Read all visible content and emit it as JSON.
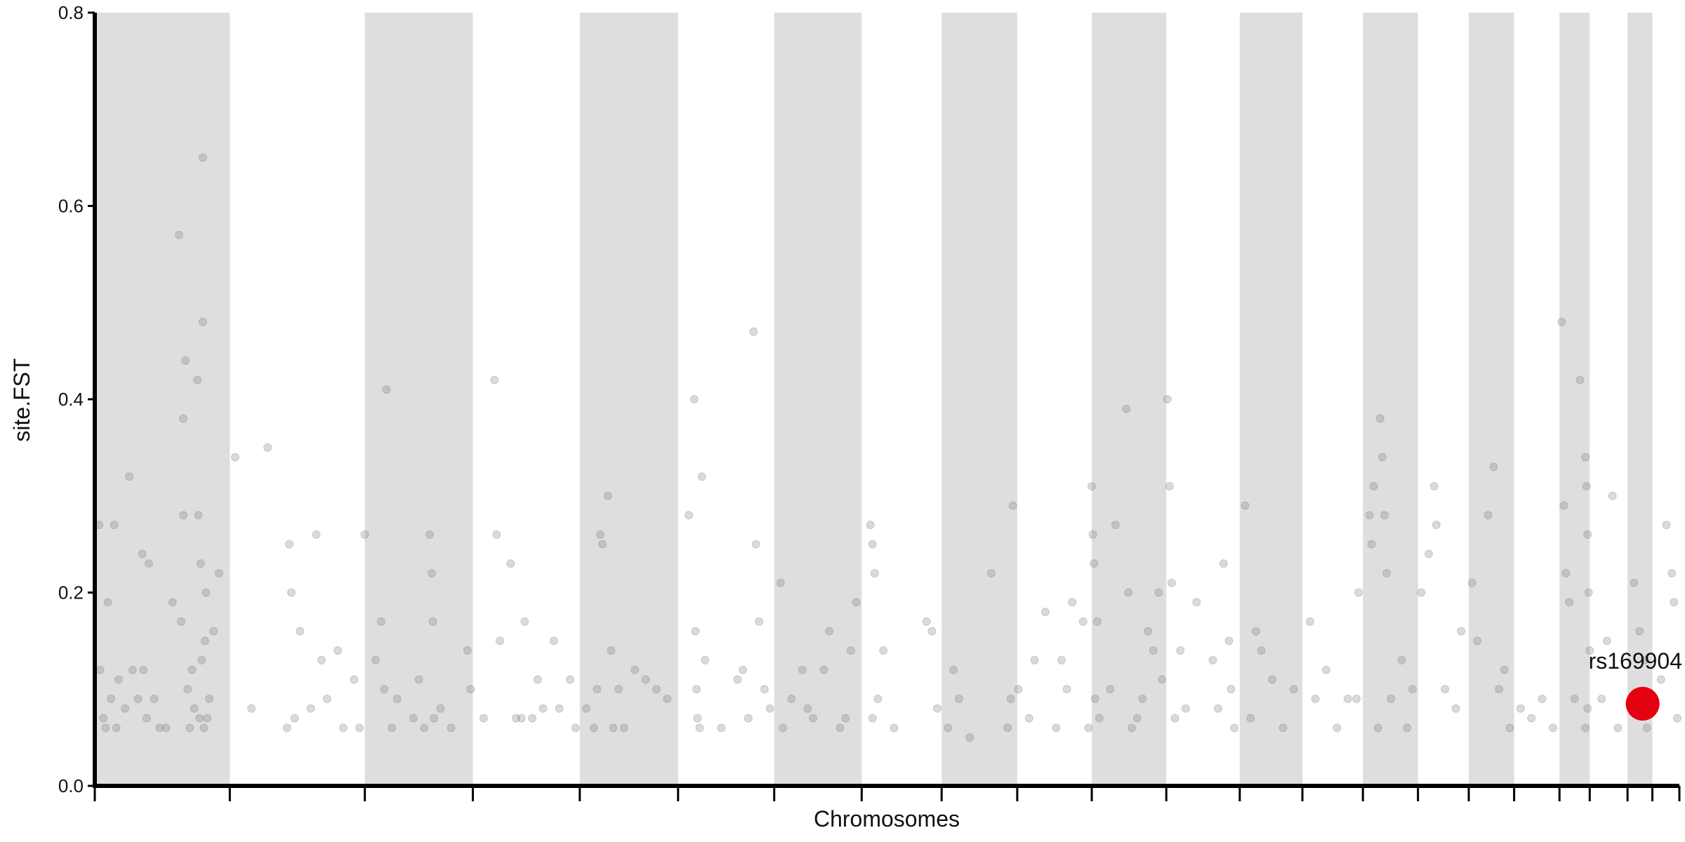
{
  "chart_data": {
    "type": "scatter",
    "xlabel": "Chromosomes",
    "ylabel": "site.FST",
    "xlim": [
      0,
      1467
    ],
    "xticks": [
      0,
      125,
      250,
      350,
      449,
      540,
      629,
      710,
      784,
      854,
      923,
      992,
      1060,
      1118,
      1174,
      1225,
      1272,
      1314,
      1356,
      1384,
      1419,
      1442,
      1467
    ],
    "ylim": [
      0,
      0.8
    ],
    "yticks": [
      {
        "value": 0,
        "label": "0.0"
      },
      0.2,
      0.4,
      0.6,
      0.8
    ],
    "alternating_bands": true,
    "band_color": "#dedede",
    "color": "#7a7a7a",
    "x": [
      4,
      5,
      8,
      12,
      15,
      18,
      22,
      28,
      32,
      35,
      40,
      44,
      48,
      50,
      55,
      60,
      66,
      72,
      78,
      80,
      82,
      82,
      84,
      86,
      88,
      95,
      96,
      98,
      100,
      100,
      102,
      104,
      106,
      110,
      115,
      90,
      92,
      103,
      99,
      101,
      97,
      45,
      20,
      10,
      130,
      160,
      145,
      180,
      182,
      185,
      190,
      205,
      210,
      215,
      225,
      230,
      240,
      245,
      178,
      200,
      250,
      260,
      265,
      270,
      275,
      280,
      295,
      300,
      310,
      312,
      313,
      314,
      320,
      330,
      345,
      348,
      305,
      268,
      360,
      370,
      372,
      375,
      385,
      390,
      398,
      410,
      415,
      425,
      430,
      440,
      445,
      395,
      405,
      455,
      465,
      468,
      470,
      475,
      478,
      480,
      485,
      490,
      520,
      530,
      462,
      500,
      510,
      550,
      555,
      556,
      557,
      558,
      560,
      562,
      565,
      580,
      600,
      610,
      612,
      615,
      620,
      595,
      605,
      625,
      635,
      637,
      645,
      655,
      665,
      675,
      680,
      690,
      700,
      705,
      695,
      660,
      718,
      720,
      722,
      725,
      730,
      740,
      770,
      775,
      780,
      720,
      790,
      795,
      800,
      810,
      830,
      848,
      850,
      845,
      855,
      865,
      870,
      880,
      890,
      900,
      905,
      915,
      920,
      895,
      923,
      924,
      925,
      926,
      928,
      930,
      940,
      945,
      955,
      957,
      965,
      970,
      975,
      980,
      985,
      988,
      960,
      993,
      995,
      997,
      1000,
      1005,
      1010,
      1020,
      1035,
      1045,
      1050,
      1052,
      1055,
      1040,
      1065,
      1070,
      1075,
      1080,
      1090,
      1100,
      1110,
      1125,
      1130,
      1140,
      1150,
      1160,
      1168,
      1170,
      1180,
      1182,
      1184,
      1190,
      1192,
      1194,
      1196,
      1200,
      1210,
      1215,
      1220,
      1188,
      1228,
      1235,
      1240,
      1242,
      1250,
      1260,
      1265,
      1275,
      1280,
      1290,
      1300,
      1305,
      1310,
      1295,
      1320,
      1330,
      1340,
      1350,
      1358,
      1360,
      1362,
      1365,
      1375,
      1380,
      1381,
      1382,
      1383,
      1384,
      1382,
      1380,
      1370,
      1405,
      1395,
      1410,
      1400,
      1425,
      1430,
      1435,
      1437,
      1428,
      1455,
      1460,
      1462,
      1465,
      1450
    ],
    "values": [
      0.27,
      0.12,
      0.07,
      0.19,
      0.09,
      0.27,
      0.11,
      0.08,
      0.32,
      0.12,
      0.09,
      0.24,
      0.07,
      0.23,
      0.09,
      0.06,
      0.06,
      0.19,
      0.57,
      0.17,
      0.28,
      0.38,
      0.44,
      0.1,
      0.06,
      0.42,
      0.28,
      0.23,
      0.65,
      0.48,
      0.15,
      0.07,
      0.09,
      0.16,
      0.22,
      0.12,
      0.08,
      0.2,
      0.13,
      0.06,
      0.07,
      0.12,
      0.06,
      0.06,
      0.34,
      0.35,
      0.08,
      0.25,
      0.2,
      0.07,
      0.16,
      0.26,
      0.13,
      0.09,
      0.14,
      0.06,
      0.11,
      0.06,
      0.06,
      0.08,
      0.26,
      0.13,
      0.17,
      0.41,
      0.06,
      0.09,
      0.07,
      0.11,
      0.26,
      0.22,
      0.17,
      0.07,
      0.08,
      0.06,
      0.14,
      0.1,
      0.06,
      0.1,
      0.07,
      0.42,
      0.26,
      0.15,
      0.23,
      0.07,
      0.17,
      0.11,
      0.08,
      0.15,
      0.08,
      0.11,
      0.06,
      0.07,
      0.07,
      0.08,
      0.1,
      0.26,
      0.25,
      0.3,
      0.14,
      0.06,
      0.1,
      0.06,
      0.1,
      0.09,
      0.06,
      0.12,
      0.11,
      0.28,
      0.4,
      0.16,
      0.1,
      0.07,
      0.06,
      0.32,
      0.13,
      0.06,
      0.12,
      0.47,
      0.25,
      0.17,
      0.1,
      0.11,
      0.07,
      0.08,
      0.21,
      0.06,
      0.09,
      0.12,
      0.07,
      0.12,
      0.16,
      0.06,
      0.14,
      0.19,
      0.07,
      0.08,
      0.27,
      0.25,
      0.22,
      0.09,
      0.14,
      0.06,
      0.17,
      0.16,
      0.08,
      0.07,
      0.06,
      0.12,
      0.09,
      0.05,
      0.22,
      0.09,
      0.29,
      0.06,
      0.1,
      0.07,
      0.13,
      0.18,
      0.06,
      0.1,
      0.19,
      0.17,
      0.06,
      0.13,
      0.31,
      0.26,
      0.23,
      0.09,
      0.17,
      0.07,
      0.1,
      0.27,
      0.39,
      0.2,
      0.07,
      0.09,
      0.16,
      0.14,
      0.2,
      0.11,
      0.06,
      0.4,
      0.31,
      0.21,
      0.07,
      0.14,
      0.08,
      0.19,
      0.13,
      0.23,
      0.15,
      0.1,
      0.06,
      0.08,
      0.29,
      0.07,
      0.16,
      0.14,
      0.11,
      0.06,
      0.1,
      0.17,
      0.09,
      0.12,
      0.06,
      0.09,
      0.09,
      0.2,
      0.28,
      0.25,
      0.31,
      0.38,
      0.34,
      0.28,
      0.22,
      0.09,
      0.13,
      0.06,
      0.1,
      0.06,
      0.2,
      0.24,
      0.31,
      0.27,
      0.1,
      0.08,
      0.16,
      0.21,
      0.15,
      0.28,
      0.1,
      0.12,
      0.06,
      0.33,
      0.08,
      0.07,
      0.09,
      0.06,
      0.48,
      0.29,
      0.22,
      0.19,
      0.42,
      0.34,
      0.31,
      0.26,
      0.2,
      0.14,
      0.08,
      0.06,
      0.09,
      0.3,
      0.09,
      0.06,
      0.15,
      0.21,
      0.16,
      0.13,
      0.06,
      0.09,
      0.27,
      0.22,
      0.19,
      0.07,
      0.11
    ],
    "highlight": {
      "label": "rs169904",
      "x": 1433,
      "y": 0.085,
      "color": "#e3000f"
    }
  }
}
